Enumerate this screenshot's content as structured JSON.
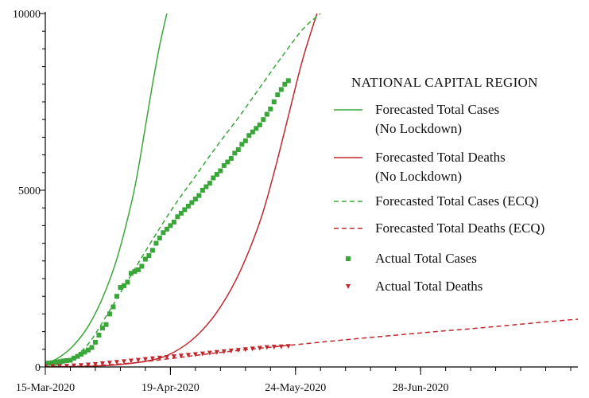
{
  "chart_data": {
    "type": "line",
    "title": "NATIONAL CAPITAL REGION",
    "xlabel": "",
    "ylabel": "",
    "x_range": [
      "2020-03-15",
      "2020-08-11"
    ],
    "ylim": [
      0,
      10000
    ],
    "x_ticks": [
      {
        "date": "2020-03-15",
        "label": "15-Mar-2020"
      },
      {
        "date": "2020-04-19",
        "label": "19-Apr-2020"
      },
      {
        "date": "2020-05-24",
        "label": "24-May-2020"
      },
      {
        "date": "2020-06-28",
        "label": "28-Jun-2020"
      }
    ],
    "y_ticks": [
      {
        "value": 0,
        "label": "0"
      },
      {
        "value": 5000,
        "label": "5000"
      },
      {
        "value": 10000,
        "label": "10000"
      }
    ],
    "grid": false,
    "legend_position": "right",
    "legend_lines": [
      [
        "Forecasted Total Cases",
        "(No Lockdown)"
      ],
      [
        "Forecasted Total Deaths",
        "(No Lockdown)"
      ],
      [
        "Forecasted Total Cases (ECQ)"
      ],
      [
        "Forecasted Total Deaths (ECQ)"
      ],
      [
        "Actual Total Cases"
      ],
      [
        "Actual Total Deaths"
      ]
    ],
    "series": [
      {
        "name": "Forecasted Total Cases (No Lockdown)",
        "style": "solid",
        "color": "#3aa63a",
        "x": [
          "2020-03-15",
          "2020-03-19",
          "2020-03-23",
          "2020-03-27",
          "2020-03-31",
          "2020-04-04",
          "2020-04-08",
          "2020-04-10",
          "2020-04-12",
          "2020-04-14",
          "2020-04-16",
          "2020-04-18"
        ],
        "y": [
          80,
          280,
          620,
          1150,
          1950,
          3050,
          4600,
          5600,
          6800,
          8000,
          9100,
          10000
        ]
      },
      {
        "name": "Forecasted Total Deaths (No Lockdown)",
        "style": "solid",
        "color": "#c0282e",
        "x": [
          "2020-03-15",
          "2020-03-25",
          "2020-04-04",
          "2020-04-14",
          "2020-04-20",
          "2020-04-26",
          "2020-05-02",
          "2020-05-08",
          "2020-05-14",
          "2020-05-18",
          "2020-05-22",
          "2020-05-26",
          "2020-05-30"
        ],
        "y": [
          0,
          15,
          60,
          200,
          420,
          850,
          1550,
          2600,
          4100,
          5500,
          7100,
          8700,
          10000
        ]
      },
      {
        "name": "Forecasted Total Cases (ECQ)",
        "style": "dashed",
        "color": "#3aa63a",
        "x": [
          "2020-03-15",
          "2020-03-21",
          "2020-03-27",
          "2020-04-02",
          "2020-04-08",
          "2020-04-14",
          "2020-04-20",
          "2020-04-26",
          "2020-05-02",
          "2020-05-08",
          "2020-05-14",
          "2020-05-20",
          "2020-05-26",
          "2020-05-31"
        ],
        "y": [
          0,
          150,
          650,
          1600,
          2600,
          3600,
          4550,
          5400,
          6250,
          7050,
          7900,
          8750,
          9550,
          10000
        ]
      },
      {
        "name": "Forecasted Total Deaths (ECQ)",
        "style": "dashed",
        "color": "#c0282e",
        "x": [
          "2020-03-15",
          "2020-03-27",
          "2020-04-08",
          "2020-04-20",
          "2020-05-02",
          "2020-05-14",
          "2020-05-26",
          "2020-06-07",
          "2020-06-19",
          "2020-07-01",
          "2020-07-13",
          "2020-07-25",
          "2020-08-06",
          "2020-08-11"
        ],
        "y": [
          0,
          30,
          110,
          250,
          400,
          530,
          650,
          770,
          880,
          990,
          1090,
          1200,
          1310,
          1350
        ]
      },
      {
        "name": "Actual Total Cases",
        "style": "marker-square",
        "color": "#3aa63a",
        "x": [
          "2020-03-15",
          "2020-03-16",
          "2020-03-17",
          "2020-03-18",
          "2020-03-19",
          "2020-03-20",
          "2020-03-21",
          "2020-03-22",
          "2020-03-23",
          "2020-03-24",
          "2020-03-25",
          "2020-03-26",
          "2020-03-27",
          "2020-03-28",
          "2020-03-29",
          "2020-03-30",
          "2020-03-31",
          "2020-04-01",
          "2020-04-02",
          "2020-04-03",
          "2020-04-04",
          "2020-04-05",
          "2020-04-06",
          "2020-04-07",
          "2020-04-08",
          "2020-04-09",
          "2020-04-10",
          "2020-04-11",
          "2020-04-12",
          "2020-04-13",
          "2020-04-14",
          "2020-04-15",
          "2020-04-16",
          "2020-04-17",
          "2020-04-18",
          "2020-04-19",
          "2020-04-20",
          "2020-04-21",
          "2020-04-22",
          "2020-04-23",
          "2020-04-24",
          "2020-04-25",
          "2020-04-26",
          "2020-04-27",
          "2020-04-28",
          "2020-04-29",
          "2020-04-30",
          "2020-05-01",
          "2020-05-02",
          "2020-05-03",
          "2020-05-04",
          "2020-05-05",
          "2020-05-06",
          "2020-05-07",
          "2020-05-08",
          "2020-05-09",
          "2020-05-10",
          "2020-05-11",
          "2020-05-12",
          "2020-05-13",
          "2020-05-14",
          "2020-05-15",
          "2020-05-16",
          "2020-05-17",
          "2020-05-18",
          "2020-05-19",
          "2020-05-20",
          "2020-05-21",
          "2020-05-22"
        ],
        "y": [
          100,
          110,
          120,
          140,
          150,
          170,
          180,
          190,
          250,
          300,
          360,
          420,
          480,
          550,
          700,
          900,
          1100,
          1200,
          1500,
          1700,
          2000,
          2250,
          2300,
          2400,
          2650,
          2700,
          2750,
          2850,
          3050,
          3150,
          3300,
          3500,
          3650,
          3800,
          3900,
          4000,
          4100,
          4250,
          4350,
          4450,
          4550,
          4650,
          4750,
          4850,
          5000,
          5100,
          5200,
          5350,
          5450,
          5550,
          5700,
          5800,
          5900,
          6050,
          6150,
          6300,
          6400,
          6550,
          6650,
          6750,
          6850,
          7000,
          7150,
          7300,
          7500,
          7700,
          7850,
          8000,
          8100
        ]
      },
      {
        "name": "Actual Total Deaths",
        "style": "marker-triangle",
        "color": "#c0282e",
        "x": [
          "2020-03-15",
          "2020-03-17",
          "2020-03-19",
          "2020-03-21",
          "2020-03-23",
          "2020-03-25",
          "2020-03-27",
          "2020-03-29",
          "2020-03-31",
          "2020-04-02",
          "2020-04-04",
          "2020-04-06",
          "2020-04-08",
          "2020-04-10",
          "2020-04-12",
          "2020-04-14",
          "2020-04-16",
          "2020-04-18",
          "2020-04-20",
          "2020-04-22",
          "2020-04-24",
          "2020-04-26",
          "2020-04-28",
          "2020-04-30",
          "2020-05-02",
          "2020-05-04",
          "2020-05-06",
          "2020-05-08",
          "2020-05-10",
          "2020-05-12",
          "2020-05-14",
          "2020-05-16",
          "2020-05-18",
          "2020-05-20",
          "2020-05-22"
        ],
        "y": [
          5,
          10,
          15,
          20,
          30,
          40,
          55,
          70,
          90,
          110,
          130,
          150,
          170,
          190,
          210,
          230,
          250,
          270,
          290,
          310,
          330,
          350,
          370,
          390,
          410,
          430,
          450,
          470,
          490,
          510,
          530,
          550,
          560,
          570,
          580
        ]
      }
    ]
  }
}
